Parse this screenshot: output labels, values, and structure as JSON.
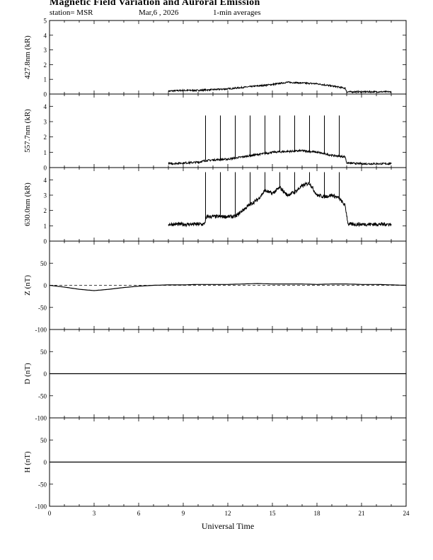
{
  "header": {
    "title": "Magnetic Field Variation and Auroral Emission",
    "station": "station= MSR",
    "date": "Mar,6  , 2026",
    "averaging": "1-min averages"
  },
  "chart_data": [
    {
      "type": "line",
      "ylabel": "427.8nm (kR)",
      "xlabel": "",
      "xlim": [
        0,
        24
      ],
      "ylim": [
        0,
        5
      ],
      "yticks": [
        "0",
        "1",
        "2",
        "3",
        "4",
        "5"
      ],
      "series": [
        {
          "x": [
            8,
            9,
            10,
            11,
            12,
            13,
            14,
            15,
            16,
            17,
            18,
            19,
            19.9,
            20,
            21,
            22,
            23
          ],
          "y": [
            0.2,
            0.25,
            0.25,
            0.3,
            0.35,
            0.45,
            0.55,
            0.65,
            0.8,
            0.75,
            0.7,
            0.55,
            0.4,
            0.15,
            0.15,
            0.15,
            0.15
          ],
          "start": 8,
          "end": 23,
          "noise": 0.05,
          "spikes": []
        }
      ]
    },
    {
      "type": "line",
      "ylabel": "557.7nm (kR)",
      "xlabel": "",
      "xlim": [
        0,
        24
      ],
      "ylim": [
        0,
        4.8
      ],
      "yticks": [
        "0",
        "1",
        "2",
        "3",
        "4"
      ],
      "series": [
        {
          "x": [
            8,
            9,
            10,
            10.5,
            11,
            12,
            13,
            14,
            15,
            16,
            17,
            18,
            19,
            19.9,
            20,
            21,
            22,
            23
          ],
          "y": [
            0.25,
            0.3,
            0.35,
            0.45,
            0.5,
            0.55,
            0.7,
            0.85,
            1.0,
            1.05,
            1.1,
            1.0,
            0.8,
            0.7,
            0.3,
            0.25,
            0.25,
            0.25
          ],
          "start": 8,
          "end": 23,
          "noise": 0.06,
          "spikes": [
            10.5,
            11.5,
            12.5,
            13.5,
            14.5,
            15.5,
            16.5,
            17.5,
            18.5,
            19.5
          ],
          "spike_top": 3.4
        }
      ]
    },
    {
      "type": "line",
      "ylabel": "630.0nm (kR)",
      "xlabel": "",
      "xlim": [
        0,
        24
      ],
      "ylim": [
        0,
        4.8
      ],
      "yticks": [
        "0",
        "1",
        "2",
        "3",
        "4"
      ],
      "series": [
        {
          "x": [
            8,
            10.4,
            10.6,
            12,
            12.5,
            13,
            13.5,
            14,
            14.5,
            15,
            15.5,
            16,
            16.5,
            17,
            17.5,
            18,
            18.5,
            19,
            19.5,
            19.9,
            20.1,
            21,
            22,
            23
          ],
          "y": [
            1.1,
            1.1,
            1.6,
            1.6,
            1.6,
            2.0,
            2.4,
            2.7,
            3.3,
            3.1,
            3.5,
            3.0,
            3.2,
            3.6,
            3.8,
            3.0,
            2.9,
            3.0,
            2.8,
            2.3,
            1.1,
            1.1,
            1.1,
            1.1
          ],
          "start": 8,
          "end": 23,
          "noise": 0.12,
          "spikes": [
            10.5,
            11.5,
            12.5,
            13.5,
            14.5,
            15.5,
            16.5,
            17.5,
            18.5,
            19.5
          ],
          "spike_top": 4.5
        }
      ]
    },
    {
      "type": "line",
      "ylabel": "Z (nT)",
      "xlabel": "",
      "xlim": [
        0,
        24
      ],
      "ylim": [
        -100,
        100
      ],
      "yticks": [
        "-100",
        "-50",
        "0",
        "50"
      ],
      "baseline": 0,
      "series": [
        {
          "x": [
            0,
            1,
            2,
            3,
            4,
            5,
            6,
            7,
            8,
            9,
            10,
            11,
            12,
            13,
            14,
            15,
            16,
            17,
            18,
            19,
            20,
            21,
            22,
            23,
            24
          ],
          "y": [
            0,
            -4,
            -9,
            -12,
            -9,
            -5,
            -2,
            0,
            1,
            1,
            2,
            2,
            2,
            3,
            4,
            3,
            3,
            3,
            2,
            3,
            3,
            2,
            2,
            1,
            0
          ],
          "start": 0,
          "end": 24,
          "noise": 0,
          "spikes": []
        }
      ]
    },
    {
      "type": "line",
      "ylabel": "D (nT)",
      "xlabel": "",
      "xlim": [
        0,
        24
      ],
      "ylim": [
        -100,
        100
      ],
      "yticks": [
        "-100",
        "-50",
        "0",
        "50"
      ],
      "baseline": 0,
      "series": [
        {
          "x": [
            0,
            24
          ],
          "y": [
            0,
            0
          ],
          "start": 0,
          "end": 24,
          "noise": 0,
          "spikes": []
        }
      ]
    },
    {
      "type": "line",
      "ylabel": "H (nT)",
      "xlabel": "Universal Time",
      "xlim": [
        0,
        24
      ],
      "ylim": [
        -100,
        100
      ],
      "yticks": [
        "-100",
        "-50",
        "0",
        "50"
      ],
      "xticks": [
        "0",
        "3",
        "6",
        "9",
        "12",
        "15",
        "18",
        "21",
        "24"
      ],
      "series": [
        {
          "x": [
            0,
            24
          ],
          "y": [
            0,
            0
          ],
          "start": 0,
          "end": 24,
          "noise": 0,
          "spikes": []
        }
      ]
    }
  ]
}
